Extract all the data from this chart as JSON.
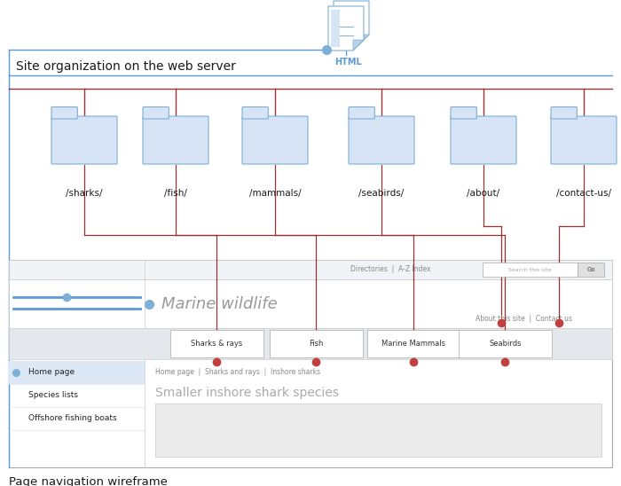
{
  "title_top": "Site organization on the web server",
  "title_bottom": "Page navigation wireframe",
  "folders": [
    "/sharks/",
    "/fish/",
    "/mammals/",
    "/seabirds/",
    "/about/",
    "/contact-us/"
  ],
  "line_color_blue": "#5b9bd5",
  "line_color_red": "#993333",
  "dot_color_blue": "#7fafd4",
  "dot_color_red": "#c04040",
  "bg_color": "#ffffff",
  "folder_face": "#d6e4f5",
  "folder_edge": "#7fafd4",
  "nav_items": [
    "Home page",
    "Species lists",
    "Offshore fishing boats"
  ],
  "tab_items": [
    "Sharks & rays",
    "Fish",
    "Marine Mammals",
    "Seabirds"
  ],
  "breadcrumb": "Home page  |  Sharks and rays  |  Inshore sharks",
  "page_title": "Smaller inshore shark species",
  "header_text": "Directories  |  A-Z Index",
  "search_text": "Search this site",
  "about_text": "About this site  |  Contact us",
  "site_title": "Marine wildlife"
}
